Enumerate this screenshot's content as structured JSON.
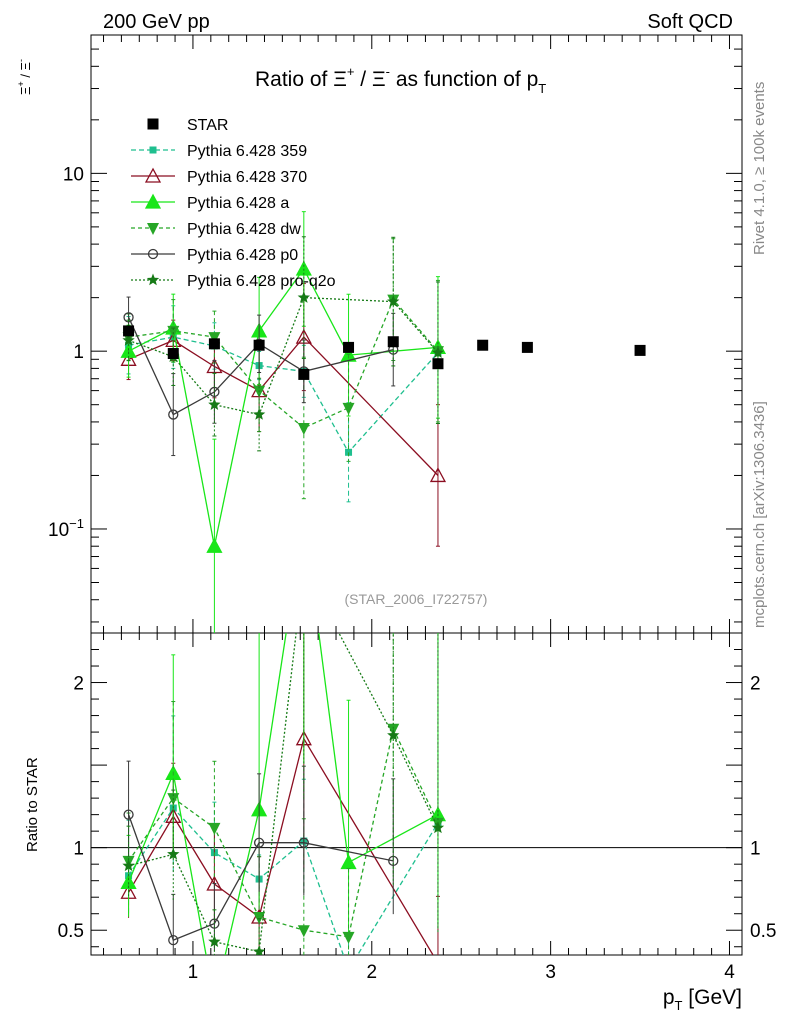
{
  "header": {
    "energy_label": "200 GeV pp",
    "process_label": "Soft QCD",
    "title_prefix": "Ratio of ",
    "title_middle": " / ",
    "title_suffix": " as function of p",
    "title_sub": "T",
    "xi": "Ξ",
    "plus": "+",
    "minus": "-"
  },
  "side": {
    "rivet": "Rivet 4.1.0, ≥ 100k events",
    "mcplots": "mcplots.cern.ch [arXiv:1306.3436]"
  },
  "analysis_id": "(STAR_2006_I722757)",
  "axes": {
    "y_main_label": "Ξ+ / Ξ-",
    "y_ratio_label": "Ratio to STAR",
    "x_label": "p",
    "x_label_sub": "T",
    "x_label_unit": " [GeV]"
  },
  "chart_data": {
    "type": "line",
    "title": "Ratio of Ξ+ / Ξ- as function of pT",
    "xlabel": "pT [GeV]",
    "ylabel": "Ξ+ / Ξ-",
    "xlim": [
      0.43,
      4.07
    ],
    "ylim": [
      0.026,
      60
    ],
    "yscale": "log",
    "ratio_ylim": [
      0.35,
      2.3
    ],
    "ratio_ylabel": "Ratio to STAR",
    "x_ticks": [
      "1",
      "2",
      "3",
      "4"
    ],
    "y_ticks": [
      "10",
      "1",
      "10−1"
    ],
    "ratio_ticks": [
      "2",
      "1",
      "0.5"
    ],
    "legend": [
      "STAR",
      "Pythia 6.428 359",
      "Pythia 6.428 370",
      "Pythia 6.428 a",
      "Pythia 6.428 dw",
      "Pythia 6.428 p0",
      "Pythia 6.428 pro-q2o"
    ],
    "star": {
      "x": [
        0.64,
        0.89,
        1.12,
        1.37,
        1.62,
        1.87,
        2.12,
        2.37,
        2.62,
        2.87,
        3.5
      ],
      "y": [
        1.3,
        0.97,
        1.1,
        1.08,
        0.74,
        1.05,
        1.13,
        0.85,
        1.08,
        1.05,
        1.01
      ]
    },
    "series": [
      {
        "name": "Pythia 6.428 359",
        "color": "#1fbf8f",
        "dash": "5,3",
        "marker": "square",
        "x": [
          0.64,
          0.89,
          1.12,
          1.37,
          1.62,
          1.87,
          2.37
        ],
        "y": [
          1.08,
          1.2,
          1.07,
          0.83,
          0.77,
          0.27,
          0.98
        ],
        "err": [
          1.45,
          1.5,
          1.35,
          1.2,
          1.4,
          1.9,
          2.5
        ],
        "ratio": [
          0.83,
          1.24,
          0.97,
          0.81,
          1.04,
          0.26,
          1.15
        ]
      },
      {
        "name": "Pythia 6.428 370",
        "color": "#8b0e21",
        "dash": "",
        "marker": "triangle-open",
        "x": [
          0.64,
          0.89,
          1.12,
          1.37,
          1.62,
          2.37
        ],
        "y": [
          0.9,
          1.15,
          0.82,
          0.6,
          1.2,
          0.2
        ],
        "err": [
          1.3,
          1.3,
          1.5,
          1.7,
          2.0,
          2.5
        ],
        "ratio": [
          0.73,
          1.19,
          0.78,
          0.58,
          1.66,
          0.3
        ]
      },
      {
        "name": "Pythia 6.428 a",
        "color": "#19e619",
        "dash": "",
        "marker": "triangle",
        "x": [
          0.64,
          0.89,
          1.12,
          1.37,
          1.62,
          1.87,
          2.37
        ],
        "y": [
          1.0,
          1.35,
          0.08,
          1.3,
          2.9,
          0.95,
          1.05
        ],
        "err": [
          1.4,
          1.55,
          4.0,
          2.0,
          2.1,
          2.2,
          2.5
        ],
        "ratio": [
          0.79,
          1.45,
          0.07,
          1.23,
          3.0,
          0.91,
          1.2
        ]
      },
      {
        "name": "Pythia 6.428 dw",
        "color": "#26a626",
        "dash": "4,3",
        "marker": "triangle-down",
        "x": [
          0.64,
          0.89,
          1.12,
          1.37,
          1.62,
          1.87,
          2.12,
          2.37
        ],
        "y": [
          1.2,
          1.3,
          1.2,
          0.6,
          0.37,
          0.48,
          1.95,
          1.0
        ],
        "err": [
          1.35,
          1.5,
          1.4,
          1.7,
          2.5,
          2.0,
          2.2,
          2.5
        ],
        "ratio": [
          0.92,
          1.3,
          1.12,
          0.58,
          0.5,
          0.46,
          1.72,
          1.15
        ]
      },
      {
        "name": "Pythia 6.428 p0",
        "color": "#3a3a3a",
        "dash": "",
        "marker": "circle-open",
        "x": [
          0.64,
          0.89,
          1.12,
          1.37,
          1.62,
          2.12
        ],
        "y": [
          1.55,
          0.44,
          0.59,
          1.1,
          0.77,
          1.02
        ],
        "err": [
          1.3,
          1.7,
          1.5,
          1.45,
          1.5,
          1.6
        ],
        "ratio": [
          1.2,
          0.44,
          0.54,
          1.03,
          1.03,
          0.92
        ]
      },
      {
        "name": "Pythia 6.428 pro-q2o",
        "color": "#167a16",
        "dash": "2,2",
        "marker": "star",
        "x": [
          0.64,
          0.89,
          1.12,
          1.37,
          1.62,
          2.12,
          2.37
        ],
        "y": [
          1.15,
          0.93,
          0.5,
          0.44,
          2.0,
          1.9,
          0.98
        ],
        "err": [
          1.3,
          1.45,
          1.5,
          1.6,
          2.2,
          2.3,
          2.5
        ],
        "ratio": [
          0.89,
          0.96,
          0.43,
          0.37,
          2.7,
          1.68,
          1.12
        ]
      }
    ]
  }
}
